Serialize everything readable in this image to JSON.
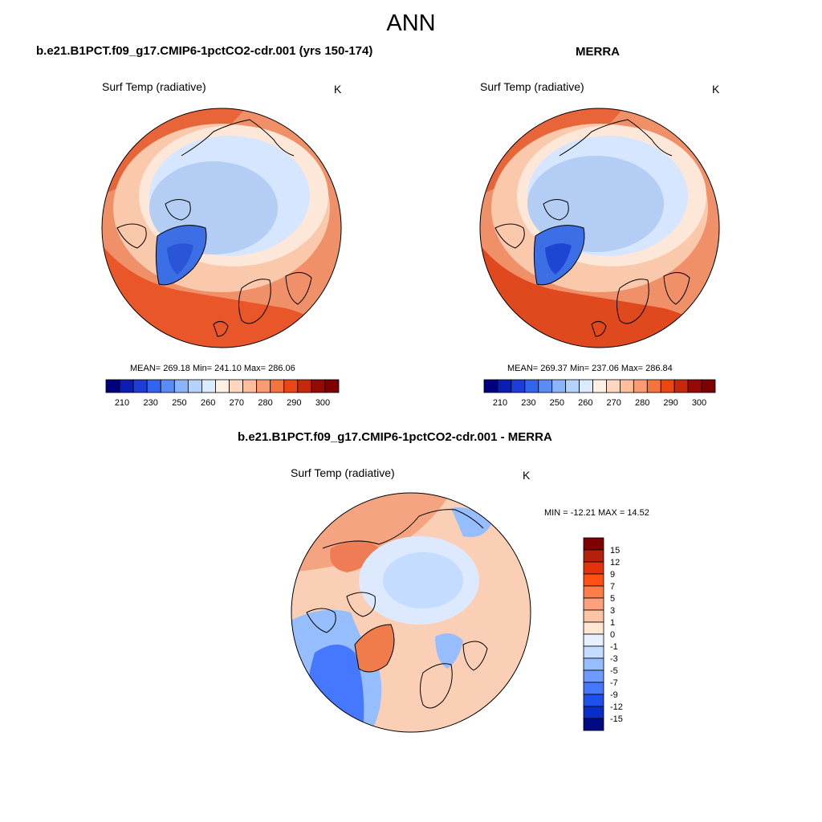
{
  "figure": {
    "season": "ANN"
  },
  "panels": {
    "model": {
      "title": "b.e21.B1PCT.f09_g17.CMIP6-1pctCO2-cdr.001 (yrs 150-174)",
      "variable": "Surf Temp (radiative)",
      "units": "K",
      "stats": "MEAN= 269.18  Min= 241.10  Max= 286.06"
    },
    "obs": {
      "title": "MERRA",
      "variable": "Surf Temp (radiative)",
      "units": "K",
      "stats": "MEAN= 269.37  Min= 237.06  Max= 286.84"
    },
    "diff": {
      "title": "b.e21.B1PCT.f09_g17.CMIP6-1pctCO2-cdr.001 - MERRA",
      "variable": "Surf Temp (radiative)",
      "units": "K",
      "stats": "MIN = -12.21 MAX =  14.52"
    }
  },
  "colorbars": {
    "abs": {
      "labels": [
        "210",
        "230",
        "250",
        "260",
        "270",
        "280",
        "290",
        "300"
      ],
      "colors": [
        "#00007f",
        "#0a1eb4",
        "#1e3cd7",
        "#3264f0",
        "#5a8cf5",
        "#8cb4fa",
        "#b4d2fc",
        "#dcebff",
        "#fff0e6",
        "#ffd7be",
        "#ffbe9b",
        "#fa9b73",
        "#f5733c",
        "#eb4614",
        "#c8280a",
        "#960a05",
        "#7f0000"
      ]
    },
    "diff": {
      "labels": [
        "15",
        "12",
        "9",
        "7",
        "5",
        "3",
        "1",
        "0",
        "-1",
        "-3",
        "-5",
        "-7",
        "-9",
        "-12",
        "-15"
      ],
      "colors": [
        "#7f0000",
        "#b4200a",
        "#e6320a",
        "#ff5014",
        "#ff7d46",
        "#ffa07d",
        "#ffc3a5",
        "#ffe6d2",
        "#e6f0ff",
        "#c3dcff",
        "#96beff",
        "#6e9bff",
        "#4678ff",
        "#1e50f0",
        "#0a2dc8",
        "#000a82"
      ]
    }
  },
  "colors": {
    "warm_dark": "#e8562a",
    "warm_mid": "#f4916c",
    "warm_light": "#fac3a5",
    "cool_light": "#d2e4ff",
    "cool_mid": "#b4cdf5",
    "cool_dark": "#3c6fe6"
  }
}
